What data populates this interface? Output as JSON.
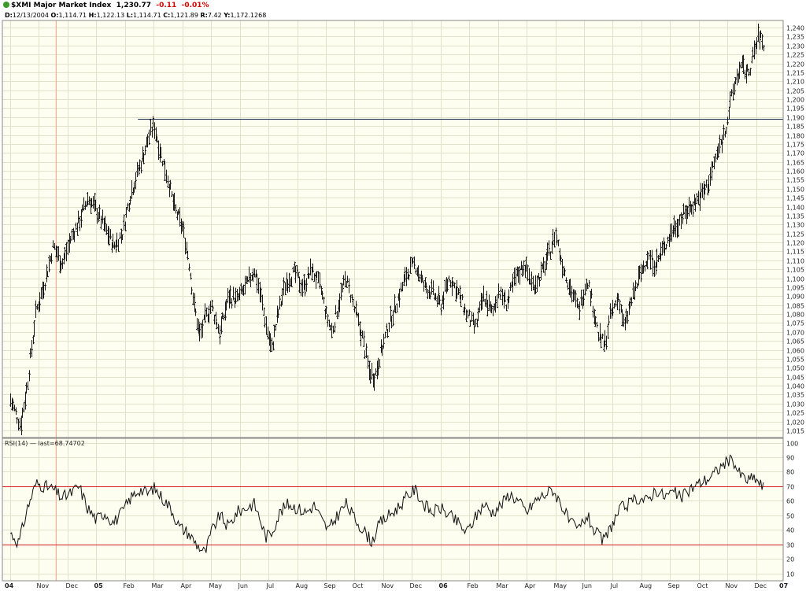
{
  "header": {
    "symbol": "$XMI Major Market Index",
    "last": "1,230.77",
    "change": "-0.11",
    "change_pct": "-0.01%",
    "ohlc": {
      "date_label": "D:",
      "date": "12/13/2004",
      "open_label": "O:",
      "open": "1,114.71",
      "high_label": "H:",
      "high": "1,122.13",
      "low_label": "L:",
      "low": "1,114.71",
      "close_label": "C:",
      "close": "1,121.89",
      "range_label": "R:",
      "range": "7.42",
      "y_label": "Y:",
      "y": "1,172.1268"
    }
  },
  "colors": {
    "plot_bg": "#fefef0",
    "grid": "#e2e2cc",
    "bars": "#1a1a1a",
    "resistance": "#1a2a4a",
    "rsi_bands": "#d42020",
    "cursor": "#f0a080",
    "status_dot": "#3a9a2a",
    "negative": "#d40000"
  },
  "chart_data": [
    {
      "type": "ohlc",
      "title": "$XMI Major Market Index",
      "y_ticks": [
        "1,015",
        "1,020",
        "1,025",
        "1,030",
        "1,035",
        "1,040",
        "1,045",
        "1,050",
        "1,055",
        "1,060",
        "1,065",
        "1,070",
        "1,075",
        "1,080",
        "1,085",
        "1,090",
        "1,095",
        "1,100",
        "1,105",
        "1,110",
        "1,115",
        "1,120",
        "1,125",
        "1,130",
        "1,135",
        "1,140",
        "1,145",
        "1,150",
        "1,155",
        "1,160",
        "1,165",
        "1,170",
        "1,175",
        "1,180",
        "1,185",
        "1,190",
        "1,195",
        "1,200",
        "1,205",
        "1,210",
        "1,215",
        "1,220",
        "1,225",
        "1,230",
        "1,235",
        "1,240"
      ],
      "ylim": [
        1011,
        1244
      ],
      "x_ticks": [
        "04",
        "Nov",
        "Dec",
        "05",
        "Feb",
        "Mar",
        "Apr",
        "May",
        "Jun",
        "Jul",
        "Aug",
        "Sep",
        "Oct",
        "Nov",
        "Dec",
        "06",
        "Feb",
        "Mar",
        "Apr",
        "May",
        "Jun",
        "Jul",
        "Aug",
        "Sep",
        "Oct",
        "Nov",
        "Dec",
        "07"
      ],
      "x_tick_pos": [
        0,
        1,
        2,
        3,
        4,
        5,
        6,
        7,
        8,
        9,
        10,
        11,
        12,
        13,
        14,
        15,
        16,
        17,
        18,
        19,
        20,
        21,
        22,
        23,
        24,
        25,
        26,
        27
      ],
      "x_range": [
        0,
        27
      ],
      "resistance_level": 1189,
      "series": [
        {
          "anchors": [
            [
              0.0,
              1032
            ],
            [
              0.35,
              1018
            ],
            [
              0.6,
              1042
            ],
            [
              0.9,
              1082
            ],
            [
              1.2,
              1098
            ],
            [
              1.5,
              1118
            ],
            [
              1.8,
              1108
            ],
            [
              2.1,
              1122
            ],
            [
              2.4,
              1132
            ],
            [
              2.7,
              1145
            ],
            [
              3.0,
              1138
            ],
            [
              3.3,
              1128
            ],
            [
              3.6,
              1118
            ],
            [
              3.9,
              1125
            ],
            [
              4.2,
              1148
            ],
            [
              4.5,
              1162
            ],
            [
              4.8,
              1178
            ],
            [
              5.0,
              1186
            ],
            [
              5.2,
              1172
            ],
            [
              5.45,
              1158
            ],
            [
              5.7,
              1140
            ],
            [
              6.0,
              1128
            ],
            [
              6.2,
              1112
            ],
            [
              6.4,
              1085
            ],
            [
              6.6,
              1068
            ],
            [
              6.8,
              1078
            ],
            [
              7.0,
              1085
            ],
            [
              7.3,
              1070
            ],
            [
              7.6,
              1090
            ],
            [
              7.9,
              1088
            ],
            [
              8.2,
              1095
            ],
            [
              8.5,
              1105
            ],
            [
              8.7,
              1092
            ],
            [
              8.9,
              1075
            ],
            [
              9.1,
              1060
            ],
            [
              9.3,
              1078
            ],
            [
              9.6,
              1098
            ],
            [
              9.9,
              1103
            ],
            [
              10.2,
              1095
            ],
            [
              10.5,
              1105
            ],
            [
              10.8,
              1095
            ],
            [
              11.0,
              1080
            ],
            [
              11.2,
              1070
            ],
            [
              11.5,
              1090
            ],
            [
              11.7,
              1100
            ],
            [
              12.0,
              1082
            ],
            [
              12.3,
              1065
            ],
            [
              12.5,
              1048
            ],
            [
              12.7,
              1045
            ],
            [
              12.9,
              1058
            ],
            [
              13.2,
              1075
            ],
            [
              13.5,
              1088
            ],
            [
              13.8,
              1102
            ],
            [
              14.1,
              1108
            ],
            [
              14.4,
              1096
            ],
            [
              14.7,
              1092
            ],
            [
              15.0,
              1085
            ],
            [
              15.3,
              1100
            ],
            [
              15.6,
              1092
            ],
            [
              15.9,
              1080
            ],
            [
              16.2,
              1072
            ],
            [
              16.5,
              1090
            ],
            [
              16.8,
              1080
            ],
            [
              17.0,
              1093
            ],
            [
              17.3,
              1086
            ],
            [
              17.6,
              1100
            ],
            [
              17.9,
              1108
            ],
            [
              18.2,
              1096
            ],
            [
              18.5,
              1102
            ],
            [
              18.8,
              1115
            ],
            [
              19.0,
              1126
            ],
            [
              19.2,
              1110
            ],
            [
              19.5,
              1095
            ],
            [
              19.8,
              1082
            ],
            [
              20.1,
              1100
            ],
            [
              20.3,
              1085
            ],
            [
              20.5,
              1068
            ],
            [
              20.7,
              1062
            ],
            [
              20.9,
              1078
            ],
            [
              21.2,
              1090
            ],
            [
              21.4,
              1072
            ],
            [
              21.6,
              1085
            ],
            [
              21.9,
              1100
            ],
            [
              22.2,
              1112
            ],
            [
              22.5,
              1108
            ],
            [
              22.8,
              1118
            ],
            [
              23.1,
              1128
            ],
            [
              23.4,
              1134
            ],
            [
              23.7,
              1140
            ],
            [
              24.0,
              1145
            ],
            [
              24.3,
              1152
            ],
            [
              24.6,
              1168
            ],
            [
              24.9,
              1182
            ],
            [
              25.1,
              1198
            ],
            [
              25.3,
              1212
            ],
            [
              25.5,
              1218
            ],
            [
              25.7,
              1214
            ],
            [
              25.9,
              1225
            ],
            [
              26.1,
              1236
            ],
            [
              26.25,
              1230
            ]
          ]
        }
      ]
    },
    {
      "type": "line",
      "title": "RSI(14)",
      "legend": "RSI(14) — last=68.74702",
      "y_ticks": [
        "10",
        "20",
        "30",
        "40",
        "50",
        "60",
        "70",
        "80",
        "90",
        "100"
      ],
      "ylim": [
        5,
        103
      ],
      "bands": [
        30,
        70
      ],
      "x_range": [
        0,
        27
      ],
      "series": [
        {
          "name": "RSI(14)",
          "anchors": [
            [
              0.0,
              38
            ],
            [
              0.3,
              31
            ],
            [
              0.6,
              55
            ],
            [
              0.9,
              72
            ],
            [
              1.2,
              70
            ],
            [
              1.5,
              68
            ],
            [
              1.8,
              62
            ],
            [
              2.1,
              65
            ],
            [
              2.4,
              70
            ],
            [
              2.7,
              55
            ],
            [
              3.0,
              47
            ],
            [
              3.3,
              52
            ],
            [
              3.6,
              45
            ],
            [
              3.9,
              52
            ],
            [
              4.2,
              62
            ],
            [
              4.5,
              68
            ],
            [
              4.8,
              65
            ],
            [
              5.0,
              69
            ],
            [
              5.3,
              62
            ],
            [
              5.6,
              55
            ],
            [
              5.9,
              42
            ],
            [
              6.2,
              38
            ],
            [
              6.5,
              30
            ],
            [
              6.8,
              24
            ],
            [
              7.0,
              38
            ],
            [
              7.3,
              50
            ],
            [
              7.6,
              42
            ],
            [
              7.9,
              52
            ],
            [
              8.2,
              55
            ],
            [
              8.5,
              58
            ],
            [
              8.7,
              48
            ],
            [
              8.9,
              35
            ],
            [
              9.1,
              38
            ],
            [
              9.4,
              52
            ],
            [
              9.7,
              58
            ],
            [
              10.0,
              55
            ],
            [
              10.3,
              52
            ],
            [
              10.6,
              57
            ],
            [
              10.9,
              45
            ],
            [
              11.1,
              40
            ],
            [
              11.4,
              50
            ],
            [
              11.7,
              58
            ],
            [
              12.0,
              48
            ],
            [
              12.3,
              40
            ],
            [
              12.6,
              32
            ],
            [
              12.9,
              45
            ],
            [
              13.2,
              50
            ],
            [
              13.5,
              55
            ],
            [
              13.8,
              62
            ],
            [
              14.1,
              68
            ],
            [
              14.4,
              58
            ],
            [
              14.7,
              52
            ],
            [
              15.0,
              55
            ],
            [
              15.3,
              50
            ],
            [
              15.6,
              45
            ],
            [
              15.9,
              38
            ],
            [
              16.2,
              48
            ],
            [
              16.5,
              58
            ],
            [
              16.8,
              52
            ],
            [
              17.1,
              57
            ],
            [
              17.4,
              65
            ],
            [
              17.7,
              60
            ],
            [
              18.0,
              52
            ],
            [
              18.3,
              60
            ],
            [
              18.6,
              64
            ],
            [
              18.9,
              68
            ],
            [
              19.2,
              58
            ],
            [
              19.5,
              45
            ],
            [
              19.8,
              40
            ],
            [
              20.1,
              50
            ],
            [
              20.4,
              38
            ],
            [
              20.7,
              32
            ],
            [
              21.0,
              45
            ],
            [
              21.3,
              55
            ],
            [
              21.6,
              58
            ],
            [
              21.9,
              62
            ],
            [
              22.2,
              60
            ],
            [
              22.5,
              68
            ],
            [
              22.8,
              63
            ],
            [
              23.1,
              66
            ],
            [
              23.4,
              62
            ],
            [
              23.7,
              68
            ],
            [
              24.0,
              72
            ],
            [
              24.3,
              75
            ],
            [
              24.6,
              80
            ],
            [
              24.9,
              86
            ],
            [
              25.2,
              88
            ],
            [
              25.4,
              79
            ],
            [
              25.7,
              74
            ],
            [
              25.95,
              76
            ],
            [
              26.25,
              69
            ]
          ]
        }
      ]
    }
  ]
}
